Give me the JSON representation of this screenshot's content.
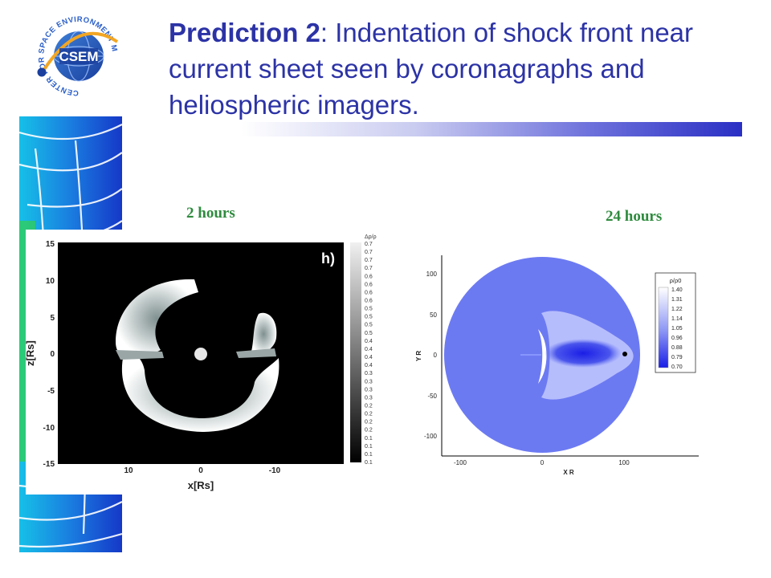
{
  "logo": {
    "ring_text": "CENTER FOR SPACE ENVIRONMENT MODELING",
    "acronym": "CSEM"
  },
  "title": {
    "bold": "Prediction 2",
    "rest": ": Indentation of shock front near current sheet seen by coronagraphs and heliospheric imagers."
  },
  "labels": {
    "left_time": "2 hours",
    "right_time": "24 hours"
  },
  "left_plot": {
    "panel_label": "h)",
    "xlabel": "x[Rs]",
    "ylabel": "z[Rs]",
    "xticks": [
      "10",
      "0",
      "-10"
    ],
    "yticks": [
      "15",
      "10",
      "5",
      "0",
      "-5",
      "-10",
      "-15"
    ],
    "colorbar_title": "Δρ/ρ",
    "colorbar_ticks": [
      "0.7",
      "0.7",
      "0.7",
      "0.7",
      "0.6",
      "0.6",
      "0.6",
      "0.6",
      "0.5",
      "0.5",
      "0.5",
      "0.5",
      "0.4",
      "0.4",
      "0.4",
      "0.4",
      "0.3",
      "0.3",
      "0.3",
      "0.3",
      "0.2",
      "0.2",
      "0.2",
      "0.2",
      "0.1",
      "0.1",
      "0.1",
      "0.1"
    ]
  },
  "right_plot": {
    "xlabel": "X R",
    "ylabel": "Y R",
    "xticks": [
      "-100",
      "0",
      "100"
    ],
    "yticks": [
      "100",
      "50",
      "0",
      "-50",
      "-100"
    ],
    "legend_title": "ρ/ρ0",
    "legend_values": [
      "1.40",
      "1.31",
      "1.22",
      "1.14",
      "1.05",
      "0.96",
      "0.88",
      "0.79",
      "0.70"
    ]
  },
  "colors": {
    "title": "#2c33a6",
    "time_labels": "#2e8b3e",
    "plot_blue": "#6c7af2",
    "deep_blue": "#1a1ee6"
  }
}
